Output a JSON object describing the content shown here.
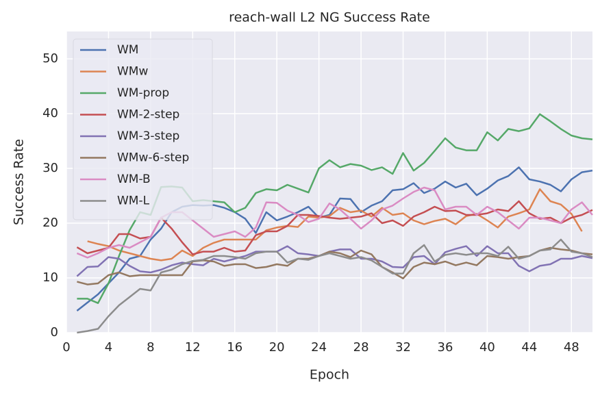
{
  "chart_data": {
    "type": "line",
    "title": "reach-wall L2 NG Success Rate",
    "x_label": "Epoch",
    "y_label": "Success Rate",
    "x": [
      1,
      2,
      3,
      4,
      5,
      6,
      7,
      8,
      9,
      10,
      11,
      12,
      13,
      14,
      15,
      16,
      17,
      18,
      19,
      20,
      21,
      22,
      23,
      24,
      25,
      26,
      27,
      28,
      29,
      30,
      31,
      32,
      33,
      34,
      35,
      36,
      37,
      38,
      39,
      40,
      41,
      42,
      43,
      44,
      45,
      46,
      47,
      48,
      49,
      50
    ],
    "series": [
      {
        "name": "WM",
        "color": "#4c72b0",
        "values": [
          4,
          5.5,
          7,
          9,
          11,
          13.5,
          14,
          17,
          19,
          22,
          23,
          23.3,
          23.2,
          23.3,
          22.8,
          22,
          20.8,
          18.2,
          22,
          20.5,
          21.2,
          22,
          23,
          21,
          21.5,
          24.5,
          24.4,
          22,
          23.2,
          24,
          26,
          26.2,
          27.3,
          25.5,
          26.3,
          27.6,
          26.5,
          27.2,
          25.1,
          26.3,
          27.8,
          28.6,
          30.2,
          28,
          27.6,
          27,
          25.8,
          28,
          29.3,
          29.6
        ]
      },
      {
        "name": "WMw",
        "color": "#dd8452",
        "values": [
          null,
          16.7,
          16.2,
          15.8,
          15,
          14.5,
          14,
          13.5,
          13.2,
          13.5,
          15,
          14,
          15.5,
          16.4,
          17,
          17,
          17,
          17,
          18.7,
          19.2,
          19.5,
          19.3,
          21.2,
          21,
          21.3,
          22.8,
          22,
          22.3,
          21.2,
          22.8,
          21.5,
          21.8,
          20.5,
          19.8,
          20.4,
          20.8,
          19.8,
          21.3,
          21.7,
          20.5,
          19.2,
          21.2,
          21.8,
          22.5,
          26.2,
          24,
          23.4,
          21.7,
          18.5,
          null
        ]
      },
      {
        "name": "WM-prop",
        "color": "#55a868",
        "values": [
          6.2,
          6.2,
          5.4,
          9,
          14,
          18.7,
          22,
          21.5,
          26.6,
          26.7,
          26.5,
          24,
          24.2,
          24,
          23.8,
          22,
          22.8,
          25.5,
          26.2,
          26,
          27,
          26.3,
          25.6,
          30,
          31.5,
          30.2,
          30.8,
          30.5,
          29.7,
          30.2,
          29,
          32.8,
          29.6,
          31,
          33.2,
          35.5,
          33.8,
          33.3,
          33.3,
          36.6,
          35.1,
          37.2,
          36.8,
          37.3,
          39.9,
          38.6,
          37.2,
          36,
          35.5,
          35.3
        ]
      },
      {
        "name": "WM-2-step",
        "color": "#c44e52",
        "values": [
          15.6,
          14.5,
          15,
          15.5,
          18,
          18,
          17.2,
          17.5,
          21,
          19,
          16.5,
          14.3,
          14.8,
          14.8,
          15.5,
          14.8,
          15,
          17.8,
          18.5,
          18.5,
          19.5,
          21.5,
          21.5,
          21.3,
          21,
          20.8,
          21,
          21.2,
          21.8,
          20,
          20.5,
          19.5,
          21.2,
          22,
          23,
          22.2,
          22.3,
          21.5,
          21.5,
          21.8,
          22.5,
          22.2,
          24,
          21.8,
          20.8,
          21,
          20,
          21,
          21.5,
          22.4
        ]
      },
      {
        "name": "WM-3-step",
        "color": "#8172b3",
        "values": [
          10.3,
          12,
          12.1,
          13.8,
          13.5,
          12.2,
          11.2,
          11,
          11.5,
          12.3,
          12.8,
          12.5,
          12.3,
          13.5,
          13,
          13.5,
          14,
          14.8,
          14.8,
          14.8,
          15.8,
          14.5,
          14.3,
          14,
          14.8,
          15.2,
          15.2,
          13.5,
          13.5,
          13,
          12,
          11.9,
          13.8,
          14,
          12.5,
          14.7,
          15.3,
          15.8,
          14,
          15.8,
          14.5,
          14.5,
          12.2,
          11.2,
          12.2,
          12.5,
          13.5,
          13.5,
          14,
          13.6
        ]
      },
      {
        "name": "WMw-6-step",
        "color": "#937860",
        "values": [
          9.3,
          8.8,
          9,
          10.5,
          11,
          10.3,
          10.5,
          10.5,
          10.5,
          10.5,
          10.5,
          13,
          13.2,
          13,
          12.2,
          12.5,
          12.5,
          11.8,
          12,
          12.5,
          12.2,
          13.5,
          13.5,
          14,
          14.8,
          14.5,
          13.8,
          15,
          14.3,
          12,
          11,
          9.9,
          12,
          12.8,
          12.5,
          13,
          12.3,
          12.8,
          12.3,
          14,
          13.8,
          13.5,
          13.8,
          14,
          15,
          15.5,
          15.2,
          15,
          14.5,
          14.3
        ]
      },
      {
        "name": "WM-B",
        "color": "#da8bc3",
        "values": [
          14.5,
          13.7,
          14.5,
          15.5,
          16,
          15.5,
          16.5,
          17.5,
          21,
          22,
          22,
          20.5,
          19,
          17.5,
          18,
          18.5,
          17.5,
          19.2,
          23.8,
          23.7,
          22.3,
          21.5,
          20.2,
          20.8,
          23.6,
          22.5,
          20.8,
          19,
          20.5,
          22.5,
          23.2,
          24.5,
          25.7,
          26.5,
          26,
          22.5,
          23,
          23,
          21.5,
          23,
          22,
          20.5,
          19,
          21,
          21,
          20.5,
          20,
          22.5,
          23.8,
          21.5
        ]
      },
      {
        "name": "WM-L",
        "color": "#8c8c8c",
        "values": [
          0,
          0.3,
          0.7,
          3,
          5,
          6.5,
          8,
          7.7,
          11,
          11.5,
          12.5,
          13.1,
          13.3,
          14,
          14,
          13.8,
          13.5,
          14.5,
          14.8,
          14.8,
          12.8,
          13.5,
          13.3,
          14,
          14.5,
          14,
          13.5,
          13.8,
          13.2,
          12,
          10.8,
          10.8,
          14.5,
          16,
          13,
          14.2,
          14.5,
          14.2,
          14.5,
          14.5,
          14,
          15.7,
          13.5,
          14,
          15,
          15.2,
          17,
          14.8,
          14.5,
          13.8
        ]
      }
    ],
    "xlim": [
      0,
      50
    ],
    "ylim": [
      0,
      55
    ],
    "xticks": [
      0,
      4,
      8,
      12,
      16,
      20,
      24,
      28,
      32,
      36,
      40,
      44,
      48
    ],
    "yticks": [
      0,
      10,
      20,
      30,
      40,
      50
    ],
    "grid": true,
    "legend": "upper left"
  }
}
